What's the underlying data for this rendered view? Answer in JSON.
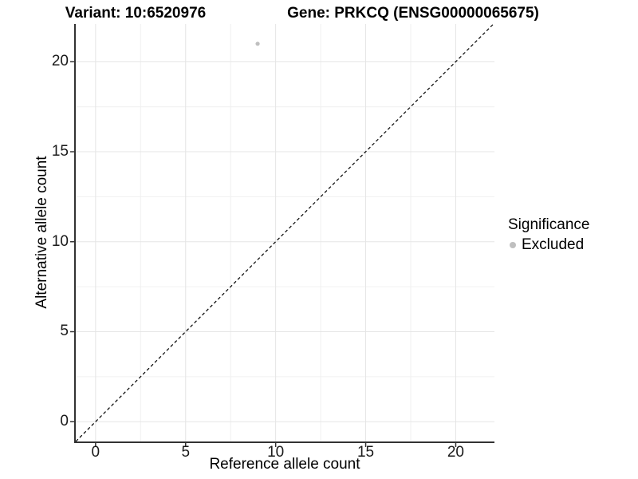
{
  "chart_data": {
    "type": "scatter",
    "title_left": "Variant: 10:6520976",
    "title_right": "Gene: PRKCQ (ENSG00000065675)",
    "xlabel": "Reference allele count",
    "ylabel": "Alternative allele count",
    "xlim": [
      -1.1,
      22.15
    ],
    "ylim": [
      -1.1,
      22.1
    ],
    "x_ticks": [
      0,
      5,
      10,
      15,
      20
    ],
    "y_ticks": [
      0,
      5,
      10,
      15,
      20
    ],
    "x_minor_ticks": [
      2.5,
      7.5,
      12.5,
      17.5
    ],
    "y_minor_ticks": [
      2.5,
      7.5,
      12.5,
      17.5
    ],
    "grid": true,
    "legend_position": "right",
    "series": [
      {
        "name": "Excluded",
        "color": "#bfbfbf",
        "points": [
          {
            "x": 9,
            "y": 21
          }
        ]
      }
    ],
    "reference_line": {
      "description": "identity line y = x",
      "style": "dashed",
      "color": "#000000",
      "from": [
        -1.1,
        -1.1
      ],
      "to": [
        22.1,
        22.1
      ]
    },
    "legend": {
      "title": "Significance",
      "entries": [
        {
          "label": "Excluded",
          "color": "#bfbfbf"
        }
      ]
    }
  },
  "colors": {
    "background": "#ffffff",
    "axis_line": "#333333",
    "tick_mark": "#333333",
    "grid_major": "#e5e5e5",
    "grid_minor": "#f0f0f0",
    "point": "#bfbfbf",
    "dashed_line": "#000000",
    "text": "#000000"
  }
}
